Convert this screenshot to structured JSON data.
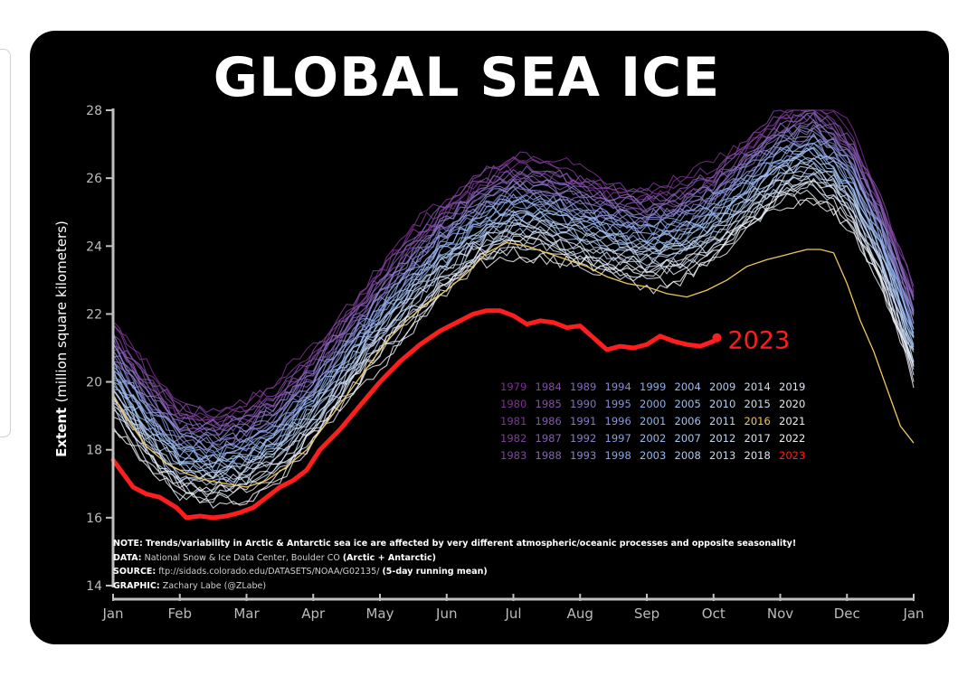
{
  "chart_data": {
    "type": "line",
    "title": "GLOBAL SEA ICE",
    "ylabel": "Extent",
    "ylabel_unit": "(million square kilometers)",
    "ylim": [
      14,
      28
    ],
    "yticks": [
      14,
      16,
      18,
      20,
      22,
      24,
      26,
      28
    ],
    "xticks": [
      "Jan",
      "Feb",
      "Mar",
      "Apr",
      "May",
      "Jun",
      "Jul",
      "Aug",
      "Sep",
      "Oct",
      "Nov",
      "Dec",
      "Jan"
    ],
    "x_unit": "month",
    "grid": false,
    "highlight_label": "2023",
    "highlight_color": "#ff1e1e",
    "colors": {
      "background": "#000000",
      "text": "#ffffff",
      "axis": "#bfbfbf",
      "early": "#7b2d8e",
      "mid": "#8fb4ee",
      "late": "#f2f2f2",
      "y2016": "#f0c75e",
      "y2023": "#ff1e1e"
    },
    "legend": {
      "placement": "center-right",
      "columns": [
        [
          "1979",
          "1980",
          "1981",
          "1982",
          "1983"
        ],
        [
          "1984",
          "1985",
          "1986",
          "1987",
          "1988"
        ],
        [
          "1989",
          "1990",
          "1991",
          "1992",
          "1993"
        ],
        [
          "1994",
          "1995",
          "1996",
          "1997",
          "1998"
        ],
        [
          "1999",
          "2000",
          "2001",
          "2002",
          "2003"
        ],
        [
          "2004",
          "2005",
          "2006",
          "2007",
          "2008"
        ],
        [
          "2009",
          "2010",
          "2011",
          "2012",
          "2013"
        ],
        [
          "2014",
          "2015",
          "2016",
          "2017",
          "2018"
        ],
        [
          "2019",
          "2020",
          "2021",
          "2022",
          "2023"
        ]
      ]
    },
    "series_2023": {
      "x": [
        0.0,
        0.15,
        0.3,
        0.5,
        0.7,
        0.95,
        1.1,
        1.3,
        1.5,
        1.7,
        1.9,
        2.1,
        2.3,
        2.5,
        2.7,
        2.9,
        3.1,
        3.4,
        3.7,
        4.0,
        4.3,
        4.6,
        4.9,
        5.2,
        5.4,
        5.6,
        5.8,
        6.0,
        6.2,
        6.4,
        6.6,
        6.8,
        7.0,
        7.2,
        7.4,
        7.6,
        7.8,
        8.0,
        8.2,
        8.4,
        8.6,
        8.8,
        9.0,
        9.05
      ],
      "y": [
        17.7,
        17.3,
        16.9,
        16.7,
        16.6,
        16.3,
        16.0,
        16.05,
        16.0,
        16.05,
        16.15,
        16.3,
        16.6,
        16.9,
        17.1,
        17.4,
        18.0,
        18.6,
        19.3,
        20.0,
        20.6,
        21.1,
        21.5,
        21.8,
        22.0,
        22.1,
        22.1,
        21.95,
        21.7,
        21.8,
        21.75,
        21.6,
        21.65,
        21.3,
        20.95,
        21.05,
        21.0,
        21.1,
        21.35,
        21.2,
        21.1,
        21.05,
        21.2,
        21.3
      ]
    },
    "series_2016": {
      "x": [
        0.0,
        0.25,
        0.5,
        0.8,
        1.1,
        1.4,
        1.7,
        2.0,
        2.3,
        2.6,
        2.9,
        3.2,
        3.5,
        3.8,
        4.1,
        4.4,
        4.7,
        5.0,
        5.3,
        5.6,
        5.9,
        6.2,
        6.5,
        6.8,
        7.1,
        7.4,
        7.7,
        8.0,
        8.3,
        8.6,
        8.9,
        9.2,
        9.5,
        9.8,
        10.0,
        10.2,
        10.4,
        10.6,
        10.8,
        11.0,
        11.2,
        11.4,
        11.6,
        11.8,
        12.0
      ],
      "y": [
        19.6,
        18.8,
        18.1,
        17.6,
        17.3,
        17.1,
        17.0,
        16.9,
        17.1,
        17.5,
        18.0,
        18.8,
        19.6,
        20.4,
        21.2,
        21.8,
        22.3,
        22.7,
        23.2,
        23.8,
        24.1,
        24.0,
        23.8,
        23.6,
        23.4,
        23.1,
        22.9,
        22.8,
        22.6,
        22.5,
        22.7,
        23.0,
        23.4,
        23.6,
        23.7,
        23.8,
        23.9,
        23.9,
        23.8,
        22.9,
        21.8,
        20.9,
        19.8,
        18.7,
        18.2
      ]
    }
  },
  "notes": {
    "note_label": "NOTE:",
    "note_text": "Trends/variability in Arctic & Antarctic sea ice are affected by very different atmospheric/oceanic processes and opposite seasonality!",
    "data_label": "DATA:",
    "data_text": "National Snow & Ice Data Center, Boulder CO",
    "data_extra": "(Arctic + Antarctic)",
    "source_label": "SOURCE:",
    "source_text": "ftp://sidads.colorado.edu/DATASETS/NOAA/G02135/",
    "source_extra": "(5-day running mean)",
    "graphic_label": "GRAPHIC:",
    "graphic_text": "Zachary Labe (@ZLabe)"
  }
}
